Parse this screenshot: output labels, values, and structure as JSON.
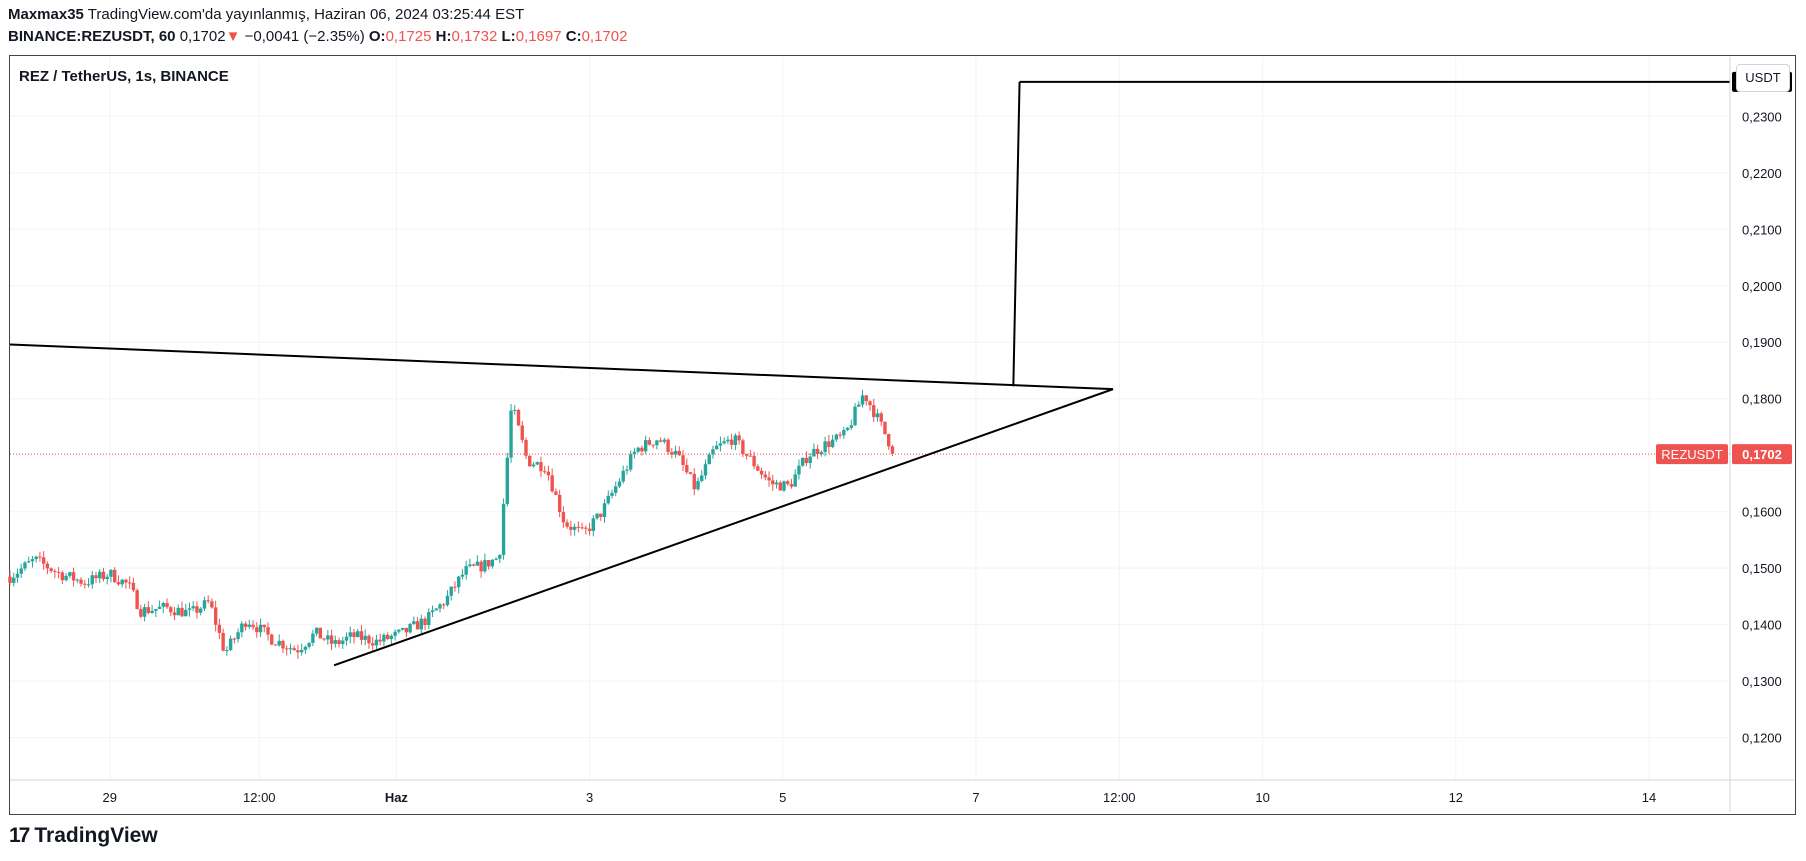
{
  "header": {
    "author": "Maxmax35",
    "published": "TradingView.com'da yayınlanmış, Haziran 06, 2024 03:25:44 EST",
    "symbol_interval": "BINANCE:REZUSDT, 60",
    "last": "0,1702",
    "change_arrow": "▼",
    "change": "−0,0041 (−2.35%)",
    "o_label": "O:",
    "o": "0,1725",
    "h_label": "H:",
    "h": "0,1732",
    "l_label": "L:",
    "l": "0,1697",
    "c_label": "C:",
    "c": "0,1702"
  },
  "chart_title": "REZ / TetherUS, 1s, BINANCE",
  "currency_button": "USDT",
  "brand": "TradingView",
  "brand_mark": "17",
  "colors": {
    "up": "#26a69a",
    "down": "#ef5350",
    "line": "#000000",
    "grid": "#f0f3fa",
    "price_line": "#ef5350"
  },
  "chart_data": {
    "type": "candlestick",
    "title": "REZ / TetherUS, 1s, BINANCE",
    "ylim": [
      0.1125,
      0.2405
    ],
    "xlim": [
      0,
      27.6
    ],
    "y_ticks": [
      {
        "v": 0.23,
        "label": "0,2300"
      },
      {
        "v": 0.22,
        "label": "0,2200"
      },
      {
        "v": 0.21,
        "label": "0,2100"
      },
      {
        "v": 0.2,
        "label": "0,2000"
      },
      {
        "v": 0.19,
        "label": "0,1900"
      },
      {
        "v": 0.18,
        "label": "0,1800"
      },
      {
        "v": 0.16,
        "label": "0,1600"
      },
      {
        "v": 0.15,
        "label": "0,1500"
      },
      {
        "v": 0.14,
        "label": "0,1400"
      },
      {
        "v": 0.13,
        "label": "0,1300"
      },
      {
        "v": 0.12,
        "label": "0,1200"
      }
    ],
    "x_ticks": [
      {
        "v": 1.6,
        "label": "29",
        "bold": false
      },
      {
        "v": 4.0,
        "label": "12:00",
        "bold": false
      },
      {
        "v": 6.2,
        "label": "Haz",
        "bold": true
      },
      {
        "v": 9.3,
        "label": "3",
        "bold": false
      },
      {
        "v": 12.4,
        "label": "5",
        "bold": false
      },
      {
        "v": 15.5,
        "label": "7",
        "bold": false
      },
      {
        "v": 17.8,
        "label": "12:00",
        "bold": false
      },
      {
        "v": 20.1,
        "label": "10",
        "bold": false
      },
      {
        "v": 23.2,
        "label": "12",
        "bold": false
      },
      {
        "v": 26.3,
        "label": "14",
        "bold": false
      }
    ],
    "price_anchors": [
      [
        0.0,
        0.1485
      ],
      [
        0.4,
        0.1515
      ],
      [
        0.8,
        0.149
      ],
      [
        1.2,
        0.1475
      ],
      [
        1.6,
        0.149
      ],
      [
        1.9,
        0.147
      ],
      [
        2.1,
        0.1425
      ],
      [
        2.5,
        0.143
      ],
      [
        2.9,
        0.142
      ],
      [
        3.2,
        0.144
      ],
      [
        3.45,
        0.135
      ],
      [
        3.8,
        0.141
      ],
      [
        4.2,
        0.1375
      ],
      [
        4.6,
        0.1355
      ],
      [
        4.9,
        0.1385
      ],
      [
        5.2,
        0.1365
      ],
      [
        5.5,
        0.138
      ],
      [
        5.9,
        0.137
      ],
      [
        6.3,
        0.1385
      ],
      [
        6.7,
        0.141
      ],
      [
        7.0,
        0.1445
      ],
      [
        7.3,
        0.1495
      ],
      [
        7.6,
        0.1505
      ],
      [
        7.85,
        0.152
      ],
      [
        8.05,
        0.179
      ],
      [
        8.3,
        0.169
      ],
      [
        8.6,
        0.168
      ],
      [
        8.9,
        0.158
      ],
      [
        9.2,
        0.156
      ],
      [
        9.5,
        0.16
      ],
      [
        9.8,
        0.166
      ],
      [
        10.05,
        0.171
      ],
      [
        10.4,
        0.173
      ],
      [
        10.7,
        0.17
      ],
      [
        11.0,
        0.164
      ],
      [
        11.3,
        0.171
      ],
      [
        11.6,
        0.173
      ],
      [
        11.9,
        0.169
      ],
      [
        12.2,
        0.165
      ],
      [
        12.5,
        0.1645
      ],
      [
        12.8,
        0.17
      ],
      [
        13.1,
        0.172
      ],
      [
        13.4,
        0.1735
      ],
      [
        13.7,
        0.181
      ],
      [
        13.9,
        0.177
      ],
      [
        14.2,
        0.1702
      ]
    ],
    "trend_lines": [
      {
        "name": "resistance",
        "x1": 0.0,
        "y1": 0.1896,
        "x2": 17.7,
        "y2": 0.1817
      },
      {
        "name": "support",
        "x1": 5.2,
        "y1": 0.1328,
        "x2": 17.7,
        "y2": 0.1817
      },
      {
        "name": "target-rise",
        "x1": 16.1,
        "y1": 0.1822,
        "x2": 16.2,
        "y2": 0.2361
      },
      {
        "name": "target-level",
        "x1": 16.2,
        "y1": 0.2361,
        "x2": 27.6,
        "y2": 0.2361
      }
    ],
    "target": {
      "value": 0.2361,
      "label": "0,2361"
    },
    "last_price": {
      "value": 0.1702,
      "label": "0,1702",
      "symbol": "REZUSDT"
    }
  }
}
